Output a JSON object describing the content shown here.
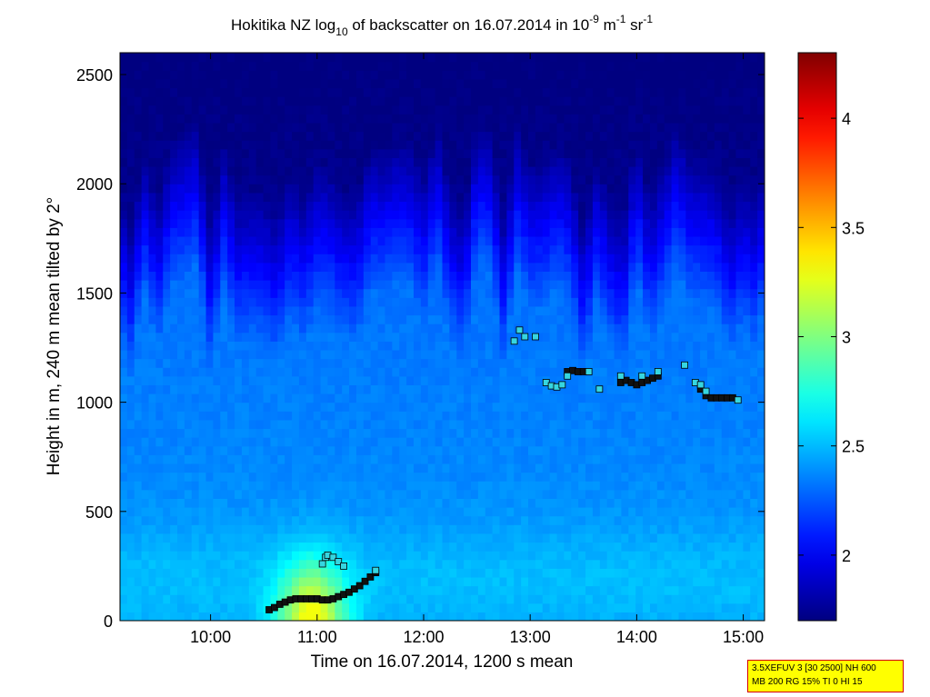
{
  "chart_data": {
    "type": "heatmap",
    "title": {
      "prefix": "Hokitika NZ log",
      "prefix_sub": "10",
      "middle": " of backscatter on 16.07.2014 in 10",
      "middle_sup": "-9",
      "unit_m": " m",
      "unit_m_sup": "-1",
      "unit_sr": " sr",
      "unit_sr_sup": "-1"
    },
    "xlabel": "Time on 16.07.2014, 1200 s mean",
    "ylabel": "Height in m, 240 m mean tilted by 2°",
    "xlim": [
      9.15,
      15.2
    ],
    "ylim": [
      0,
      2600
    ],
    "x_ticks": [
      10,
      11,
      12,
      13,
      14,
      15
    ],
    "x_tick_labels": [
      "10:00",
      "11:00",
      "12:00",
      "13:00",
      "14:00",
      "15:00"
    ],
    "y_ticks": [
      0,
      500,
      1000,
      1500,
      2000,
      2500
    ],
    "y_tick_labels": [
      "0",
      "500",
      "1000",
      "1500",
      "2000",
      "2500"
    ],
    "colorbar": {
      "range": [
        1.7,
        4.3
      ],
      "ticks": [
        2,
        2.5,
        3,
        3.5,
        4
      ],
      "tick_labels": [
        "2",
        "2.5",
        "3",
        "3.5",
        "4"
      ],
      "colormap": "jet"
    },
    "markers": {
      "fill_color": "#36d6e0",
      "edge_color": "#000000",
      "dark_points": [
        [
          10.55,
          50
        ],
        [
          10.6,
          60
        ],
        [
          10.65,
          75
        ],
        [
          10.7,
          85
        ],
        [
          10.75,
          95
        ],
        [
          10.8,
          100
        ],
        [
          10.85,
          100
        ],
        [
          10.9,
          100
        ],
        [
          10.95,
          100
        ],
        [
          11.0,
          100
        ],
        [
          11.05,
          95
        ],
        [
          11.1,
          95
        ],
        [
          11.15,
          100
        ],
        [
          11.2,
          110
        ],
        [
          11.25,
          120
        ],
        [
          11.3,
          130
        ],
        [
          11.35,
          145
        ],
        [
          11.4,
          160
        ],
        [
          11.45,
          180
        ],
        [
          11.5,
          200
        ],
        [
          11.55,
          220
        ],
        [
          13.35,
          1140
        ],
        [
          13.4,
          1145
        ],
        [
          13.45,
          1140
        ],
        [
          13.5,
          1140
        ],
        [
          13.85,
          1090
        ],
        [
          13.9,
          1100
        ],
        [
          13.95,
          1090
        ],
        [
          14.0,
          1080
        ],
        [
          14.05,
          1090
        ],
        [
          14.1,
          1100
        ],
        [
          14.15,
          1110
        ],
        [
          14.2,
          1120
        ],
        [
          14.6,
          1060
        ],
        [
          14.65,
          1030
        ],
        [
          14.7,
          1020
        ],
        [
          14.75,
          1020
        ],
        [
          14.8,
          1020
        ],
        [
          14.85,
          1020
        ],
        [
          14.9,
          1020
        ]
      ],
      "light_points": [
        [
          11.05,
          260
        ],
        [
          11.08,
          290
        ],
        [
          11.1,
          300
        ],
        [
          11.15,
          290
        ],
        [
          11.2,
          270
        ],
        [
          11.25,
          250
        ],
        [
          11.55,
          230
        ],
        [
          12.85,
          1280
        ],
        [
          12.9,
          1330
        ],
        [
          12.95,
          1300
        ],
        [
          13.05,
          1300
        ],
        [
          13.15,
          1090
        ],
        [
          13.2,
          1075
        ],
        [
          13.25,
          1070
        ],
        [
          13.3,
          1080
        ],
        [
          13.35,
          1120
        ],
        [
          13.55,
          1140
        ],
        [
          13.65,
          1060
        ],
        [
          13.85,
          1120
        ],
        [
          14.05,
          1120
        ],
        [
          14.2,
          1140
        ],
        [
          14.45,
          1170
        ],
        [
          14.55,
          1090
        ],
        [
          14.6,
          1080
        ],
        [
          14.65,
          1050
        ],
        [
          14.95,
          1010
        ]
      ]
    },
    "field_notes": "log10 backscatter field: ~2.4 near ground, higher plume (to ~3.2) at 10:40-11:30 below 300 m, decreasing above 1500 m to ~1.8, with columns of enhanced values extending upward"
  },
  "info_box": {
    "line1": "3.5XEFUV 3 [30 2500] NH 600",
    "line2": "MB 200 RG 15% TI 0 HI 15"
  }
}
